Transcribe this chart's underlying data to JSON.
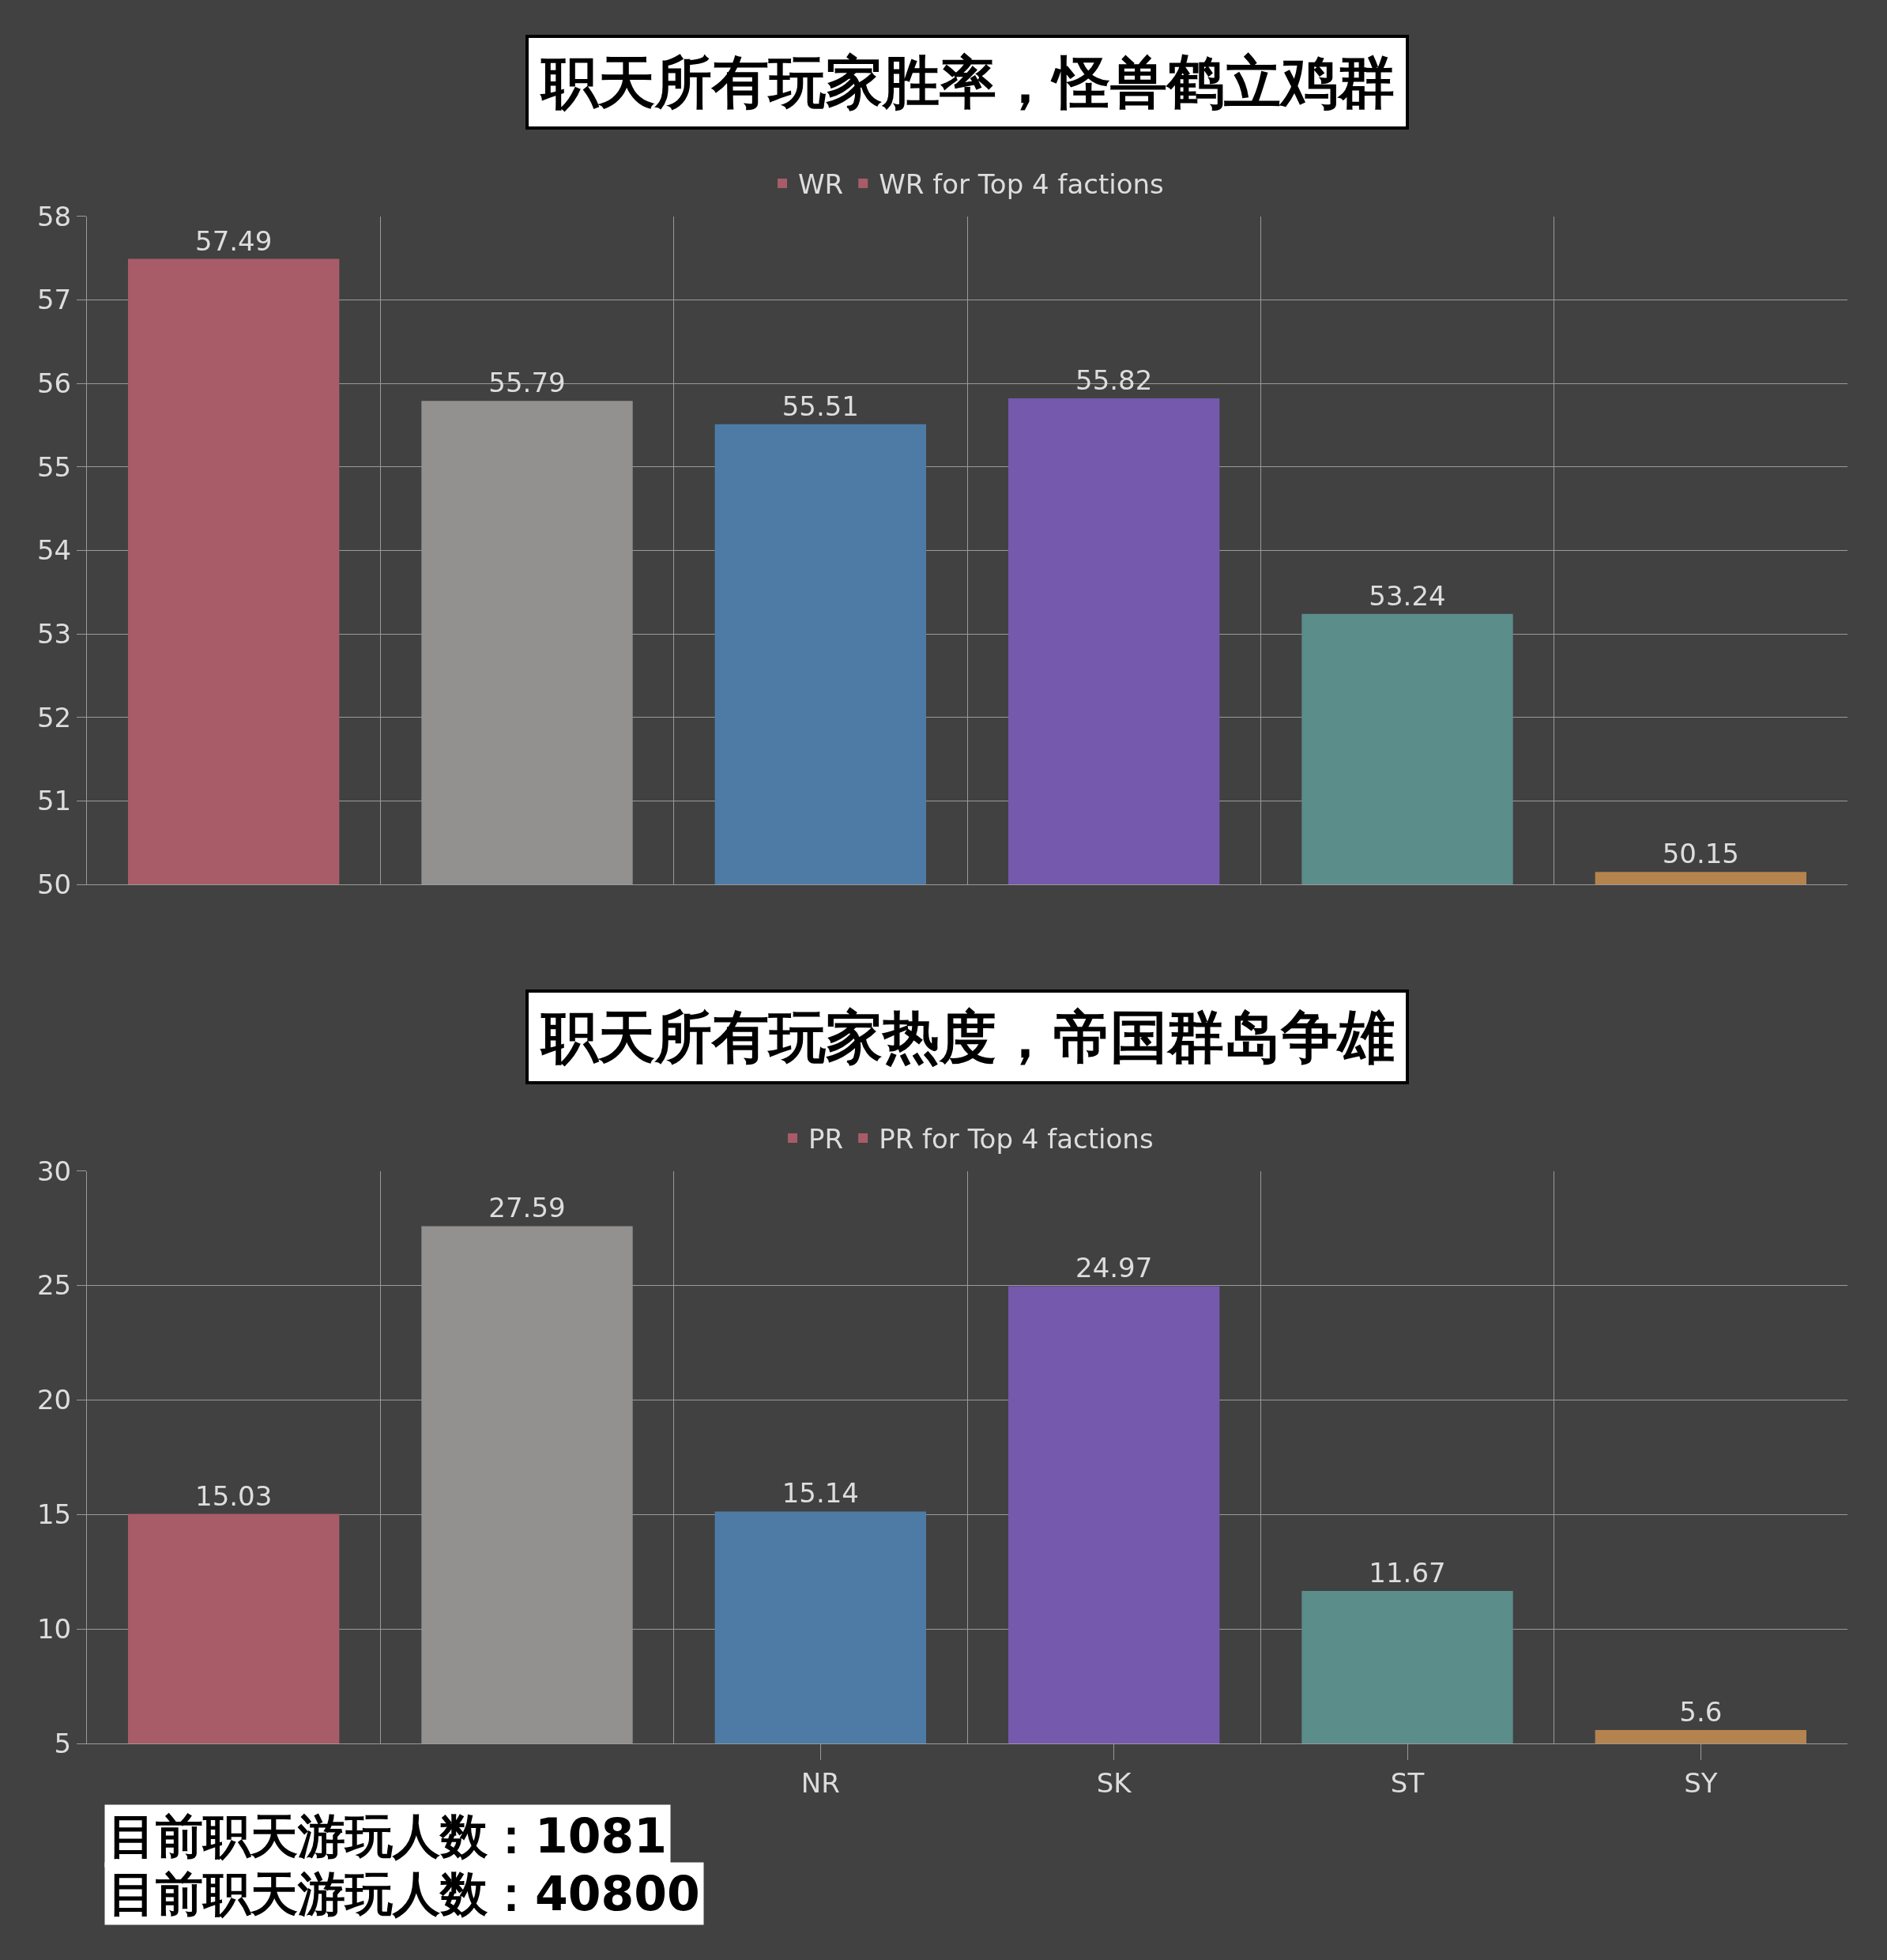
{
  "chart_data": [
    {
      "type": "bar",
      "title": "职天所有玩家胜率，怪兽鹤立鸡群",
      "categories": [
        null,
        null,
        null,
        null,
        null,
        null
      ],
      "series": [
        {
          "name": "WR",
          "colors": [
            "#a85c68",
            "#929190",
            "#4d7ba6",
            "#7459ad",
            "#5b8d8a",
            "#b5834e"
          ],
          "values": [
            57.49,
            55.79,
            55.51,
            55.82,
            53.24,
            50.15
          ]
        },
        {
          "name": "WR for Top 4 factions",
          "color": "#a85c68",
          "values": [
            null,
            null,
            null,
            null,
            null,
            null
          ]
        }
      ],
      "ylim": [
        50,
        58
      ],
      "yticks": [
        50,
        51,
        52,
        53,
        54,
        55,
        56,
        57,
        58
      ],
      "grid": true,
      "legend": "top",
      "data_labels": true
    },
    {
      "type": "bar",
      "title": "职天所有玩家热度，帝国群岛争雄",
      "categories": [
        null,
        null,
        "NR",
        "SK",
        "ST",
        "SY"
      ],
      "series": [
        {
          "name": "PR",
          "colors": [
            "#a85c68",
            "#929190",
            "#4d7ba6",
            "#7459ad",
            "#5b8d8a",
            "#b5834e"
          ],
          "values": [
            15.03,
            27.59,
            15.14,
            24.97,
            11.67,
            5.6
          ]
        },
        {
          "name": "PR for Top 4 factions",
          "color": "#a85c68",
          "values": [
            null,
            null,
            null,
            null,
            null,
            null
          ]
        }
      ],
      "ylim": [
        5,
        30
      ],
      "yticks": [
        5,
        10,
        15,
        20,
        25,
        30
      ],
      "grid": true,
      "legend": "top",
      "data_labels": true,
      "annotations": [
        "目前职天游玩人数：1081",
        "目前职天游玩人数：40800"
      ]
    }
  ]
}
